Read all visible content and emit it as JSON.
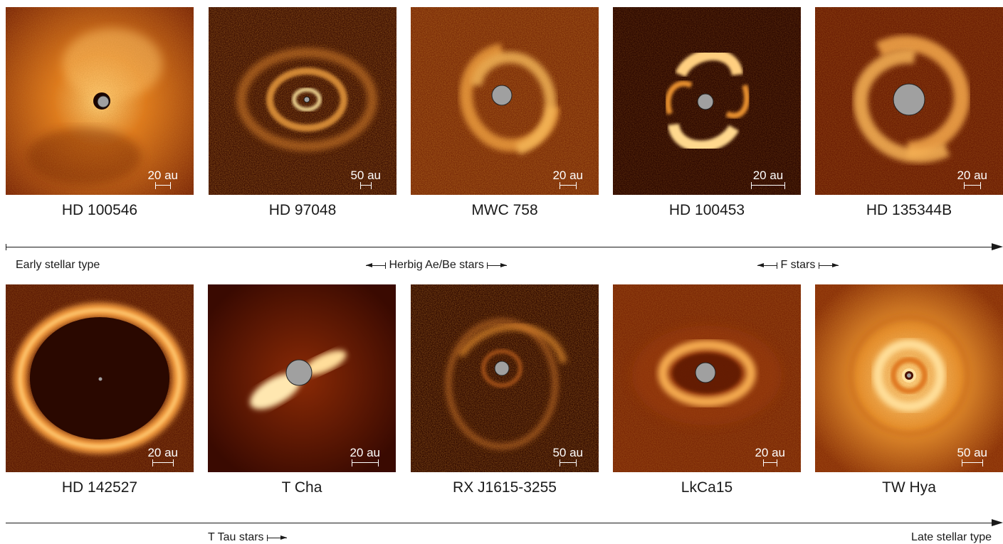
{
  "row1": [
    {
      "name": "HD 100546",
      "scale": "20 au",
      "image": "disk-image-bright-halo"
    },
    {
      "name": "HD 97048",
      "scale": "50 au",
      "image": "disk-image-concentric-rings"
    },
    {
      "name": "MWC 758",
      "scale": "20 au",
      "image": "disk-image-two-arm-spiral"
    },
    {
      "name": "HD 100453",
      "scale": "20 au",
      "image": "disk-image-two-arm-spiral-compact"
    },
    {
      "name": "HD 135344B",
      "scale": "20 au",
      "image": "disk-image-spiral-arms"
    }
  ],
  "row2": [
    {
      "name": "HD 142527",
      "scale": "20 au",
      "image": "disk-image-large-cavity-ring"
    },
    {
      "name": "T Cha",
      "scale": "20 au",
      "image": "disk-image-edge-on-lobes"
    },
    {
      "name": "RX J1615-3255",
      "scale": "50 au",
      "image": "disk-image-faint-rings"
    },
    {
      "name": "LkCa15",
      "scale": "20 au",
      "image": "disk-image-inclined-ring"
    },
    {
      "name": "TW Hya",
      "scale": "50 au",
      "image": "disk-image-face-on-rings"
    }
  ],
  "axis_top": {
    "start_label": "Early stellar type",
    "group1_label": "Herbig Ae/Be stars",
    "group2_label": "F stars"
  },
  "axis_bottom": {
    "group_label": "T Tau stars",
    "end_label": "Late stellar type"
  },
  "colors": {
    "dark": "#2a0600",
    "mid": "#b2460a",
    "bright": "#ffd98a",
    "mask": "#a0a0a0"
  }
}
